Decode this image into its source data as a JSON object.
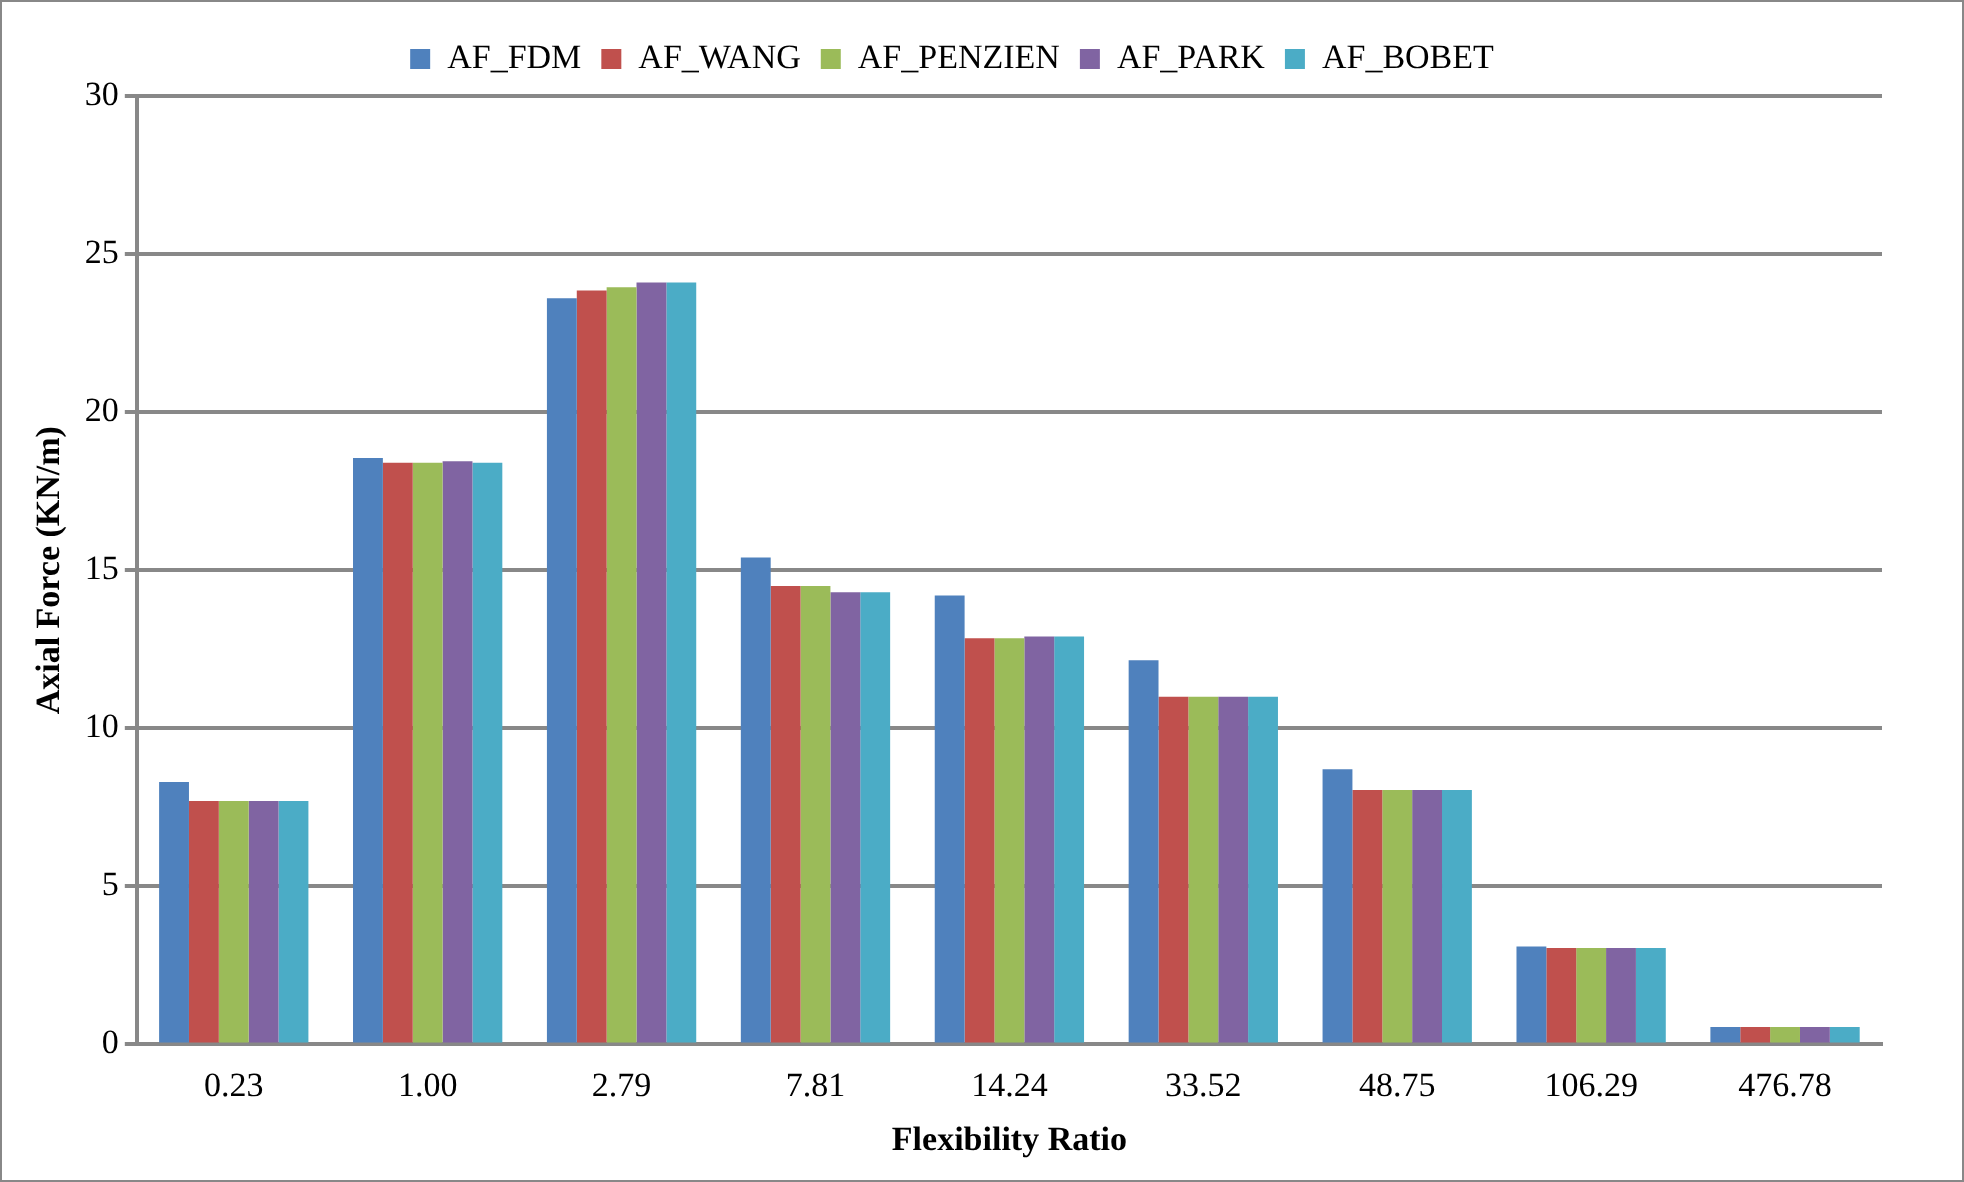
{
  "chart_data": {
    "type": "bar",
    "xlabel": "Flexibility Ratio",
    "ylabel": "Axial Force (KN/m)",
    "categories": [
      "0.23",
      "1.00",
      "2.79",
      "7.81",
      "14.24",
      "33.52",
      "48.75",
      "106.29",
      "476.78"
    ],
    "series": [
      {
        "name": "AF_FDM",
        "color": "#4f81bd",
        "values": [
          8.3,
          18.55,
          23.6,
          15.4,
          14.2,
          12.15,
          8.7,
          3.1,
          0.55
        ]
      },
      {
        "name": "AF_WANG",
        "color": "#c0504d",
        "values": [
          7.7,
          18.4,
          23.85,
          14.5,
          12.85,
          11.0,
          8.05,
          3.05,
          0.55
        ]
      },
      {
        "name": "AF_PENZIEN",
        "color": "#9bbb59",
        "values": [
          7.7,
          18.4,
          23.95,
          14.5,
          12.85,
          11.0,
          8.05,
          3.05,
          0.55
        ]
      },
      {
        "name": "AF_PARK",
        "color": "#8064a2",
        "values": [
          7.7,
          18.45,
          24.1,
          14.3,
          12.9,
          11.0,
          8.05,
          3.05,
          0.55
        ]
      },
      {
        "name": "AF_BOBET",
        "color": "#4bacc6",
        "values": [
          7.7,
          18.4,
          24.1,
          14.3,
          12.9,
          11.0,
          8.05,
          3.05,
          0.55
        ]
      }
    ],
    "ylim": [
      0,
      30
    ],
    "yticks": [
      0,
      5,
      10,
      15,
      20,
      25,
      30
    ],
    "grid": "y",
    "legend": "top"
  }
}
